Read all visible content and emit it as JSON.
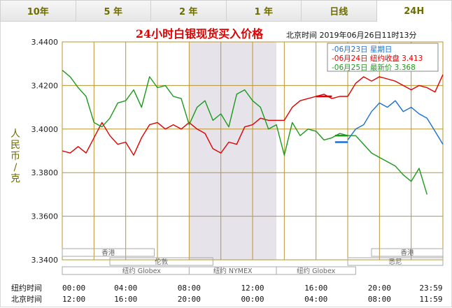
{
  "tabs": [
    {
      "label": "10年",
      "active": false
    },
    {
      "label": "5 年",
      "active": false
    },
    {
      "label": "2 年",
      "active": false
    },
    {
      "label": "1 年",
      "active": false
    },
    {
      "label": "日线",
      "active": false
    },
    {
      "label": "24H",
      "active": true
    }
  ],
  "chart_data": {
    "type": "line",
    "title": "24小时白银现货买入价格",
    "subtitle_time": "北京时间   2019年06月26日11时13分",
    "ylabel": "人民币/克",
    "ylim": [
      3.34,
      3.44
    ],
    "yticks": [
      "3.4400",
      "3.4200",
      "3.4000",
      "3.3800",
      "3.3600",
      "3.3400"
    ],
    "x_rows": [
      {
        "label": "纽约时间",
        "ticks": [
          "00:00",
          "04:00",
          "08:00",
          "12:00",
          "16:00",
          "20:00",
          "23:59"
        ]
      },
      {
        "label": "北京时间",
        "ticks": [
          "12:00",
          "16:00",
          "20:00",
          "00:00",
          "04:00",
          "08:00",
          "11:59"
        ]
      }
    ],
    "legend": [
      {
        "text": "06月23日     星期日",
        "color": "#1a6fd6"
      },
      {
        "text": "06月24日   纽约收盘 3.413",
        "color": "#e00000"
      },
      {
        "text": "06月25日     最新价 3.368",
        "color": "#1a9a1a"
      }
    ],
    "session_labels": [
      "香港",
      "伦敦",
      "纽约 Globex",
      "纽约 NYMEX",
      "纽约 Globex",
      "香港",
      "悉尼"
    ],
    "colors": {
      "grid": "#b8962e",
      "shade": "#e7e3ea",
      "red": "#e00000",
      "green": "#1a9a1a",
      "blue": "#1a6fd6",
      "title": "#e00000"
    },
    "series": [
      {
        "name": "06月24日",
        "color": "#e00000",
        "x": [
          0,
          0.5,
          1,
          1.5,
          2,
          2.5,
          3,
          3.5,
          4,
          4.5,
          5,
          5.5,
          6,
          6.5,
          7,
          7.5,
          8,
          8.5,
          9,
          9.5,
          10,
          10.5,
          11,
          11.5,
          12,
          12.5,
          13,
          13.5,
          14,
          14.5,
          15,
          15.5,
          16,
          16.5,
          17,
          17.5,
          18,
          18.5,
          19,
          19.5,
          20,
          20.5,
          21,
          21.5,
          22,
          22.5,
          23,
          23.5,
          24
        ],
        "y": [
          3.39,
          3.389,
          3.392,
          3.389,
          3.396,
          3.403,
          3.397,
          3.393,
          3.394,
          3.388,
          3.396,
          3.402,
          3.403,
          3.4,
          3.402,
          3.4,
          3.403,
          3.4,
          3.398,
          3.391,
          3.389,
          3.394,
          3.393,
          3.401,
          3.402,
          3.405,
          3.404,
          3.404,
          3.404,
          3.41,
          3.413,
          3.414,
          3.415,
          3.416,
          3.414,
          3.415,
          3.415,
          3.421,
          3.424,
          3.422,
          3.424,
          3.423,
          3.422,
          3.42,
          3.418,
          3.42,
          3.419,
          3.417,
          3.425
        ]
      },
      {
        "name": "06月25日",
        "color": "#1a9a1a",
        "x": [
          0,
          0.5,
          1,
          1.5,
          2,
          2.5,
          3,
          3.5,
          4,
          4.5,
          5,
          5.5,
          6,
          6.5,
          7,
          7.5,
          8,
          8.5,
          9,
          9.5,
          10,
          10.5,
          11,
          11.5,
          12,
          12.5,
          13,
          13.5,
          14,
          14.5,
          15,
          15.5,
          16,
          16.5,
          17,
          17.5,
          18,
          18.5,
          19,
          19.5,
          20,
          20.5,
          21,
          21.5,
          22,
          22.5,
          23
        ],
        "y": [
          3.427,
          3.424,
          3.419,
          3.415,
          3.403,
          3.401,
          3.405,
          3.412,
          3.413,
          3.418,
          3.41,
          3.424,
          3.419,
          3.42,
          3.415,
          3.414,
          3.402,
          3.41,
          3.413,
          3.404,
          3.407,
          3.401,
          3.416,
          3.418,
          3.413,
          3.41,
          3.4,
          3.402,
          3.388,
          3.403,
          3.397,
          3.4,
          3.399,
          3.395,
          3.396,
          3.398,
          3.397,
          3.397,
          3.393,
          3.389,
          3.387,
          3.385,
          3.383,
          3.379,
          3.376,
          3.382,
          3.37
        ]
      },
      {
        "name": "06月23日",
        "color": "#1a6fd6",
        "x": [
          18,
          18.5,
          19,
          19.5,
          20,
          20.5,
          21,
          21.5,
          22,
          22.5,
          23,
          23.5,
          24
        ],
        "y": [
          3.395,
          3.4,
          3.402,
          3.408,
          3.412,
          3.41,
          3.413,
          3.408,
          3.41,
          3.407,
          3.405,
          3.399,
          3.393
        ]
      }
    ]
  }
}
